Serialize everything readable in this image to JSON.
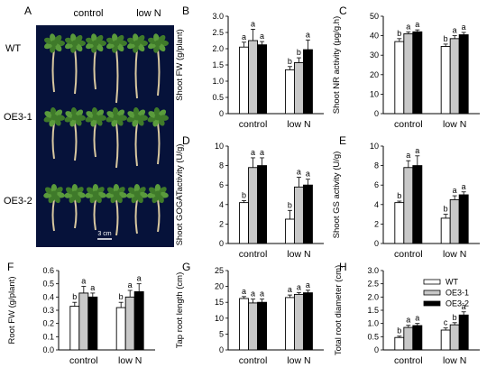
{
  "panel_a": {
    "letter": "A",
    "col_labels": [
      "control",
      "low N"
    ],
    "row_labels": [
      "WT",
      "OE3-1",
      "OE3-2"
    ],
    "scale_label": "3 cm"
  },
  "colors": {
    "WT": "#ffffff",
    "OE3-1": "#c8c8c8",
    "OE3-2": "#000000",
    "photo_bg": "#06123a"
  },
  "chart_data": [
    {
      "id": "B",
      "letter": "B",
      "type": "bar",
      "ylabel": "Shoot FW  (g/plant)",
      "categories": [
        "control",
        "low N"
      ],
      "ylim": [
        0,
        3
      ],
      "yticks": [
        0,
        0.5,
        1.0,
        1.5,
        2.0,
        2.5,
        3.0
      ],
      "tick_decimals": 1,
      "zero_label": "0",
      "series": [
        {
          "name": "WT",
          "values": [
            2.05,
            1.35
          ],
          "errors": [
            0.15,
            0.1
          ],
          "letters": [
            "a",
            "b"
          ]
        },
        {
          "name": "OE3-1",
          "values": [
            2.25,
            1.57
          ],
          "errors": [
            0.35,
            0.15
          ],
          "letters": [
            "a",
            "b"
          ]
        },
        {
          "name": "OE3-2",
          "values": [
            2.12,
            1.97
          ],
          "errors": [
            0.1,
            0.3
          ],
          "letters": [
            "a",
            "a"
          ]
        }
      ]
    },
    {
      "id": "C",
      "letter": "C",
      "type": "bar",
      "ylabel": "Shoot NR activity (μg/g.h)",
      "categories": [
        "control",
        "low N"
      ],
      "ylim": [
        0,
        50
      ],
      "yticks": [
        0,
        10,
        20,
        30,
        40,
        50
      ],
      "tick_decimals": 0,
      "zero_label": "0",
      "series": [
        {
          "name": "WT",
          "values": [
            37,
            34.5
          ],
          "errors": [
            1.5,
            1.2
          ],
          "letters": [
            "b",
            "b"
          ]
        },
        {
          "name": "OE3-1",
          "values": [
            41,
            38.5
          ],
          "errors": [
            1.0,
            1.5
          ],
          "letters": [
            "a",
            "a"
          ]
        },
        {
          "name": "OE3-2",
          "values": [
            42,
            40.5
          ],
          "errors": [
            1.0,
            1.2
          ],
          "letters": [
            "a",
            "a"
          ]
        }
      ]
    },
    {
      "id": "D",
      "letter": "D",
      "type": "bar",
      "ylabel": "Shoot GOGATactivity (U/g)",
      "categories": [
        "control",
        "low N"
      ],
      "ylim": [
        0,
        10
      ],
      "yticks": [
        0,
        2,
        4,
        6,
        8,
        10
      ],
      "tick_decimals": 0,
      "zero_label": "0",
      "series": [
        {
          "name": "WT",
          "values": [
            4.2,
            2.5
          ],
          "errors": [
            0.2,
            0.9
          ],
          "letters": [
            "b",
            "b"
          ]
        },
        {
          "name": "OE3-1",
          "values": [
            7.8,
            5.8
          ],
          "errors": [
            1.0,
            1.0
          ],
          "letters": [
            "a",
            "a"
          ]
        },
        {
          "name": "OE3-2",
          "values": [
            8.0,
            6.0
          ],
          "errors": [
            0.8,
            0.6
          ],
          "letters": [
            "a",
            "a"
          ]
        }
      ]
    },
    {
      "id": "E",
      "letter": "E",
      "type": "bar",
      "ylabel": "Shoot GS activity (U/g)",
      "categories": [
        "control",
        "low N"
      ],
      "ylim": [
        0,
        10
      ],
      "yticks": [
        0,
        2,
        4,
        6,
        8,
        10
      ],
      "tick_decimals": 0,
      "zero_label": "0",
      "series": [
        {
          "name": "WT",
          "values": [
            4.2,
            2.6
          ],
          "errors": [
            0.15,
            0.4
          ],
          "letters": [
            "b",
            "b"
          ]
        },
        {
          "name": "OE3-1",
          "values": [
            7.8,
            4.5
          ],
          "errors": [
            0.7,
            0.4
          ],
          "letters": [
            "a",
            "a"
          ]
        },
        {
          "name": "OE3-2",
          "values": [
            8.0,
            5.0
          ],
          "errors": [
            1.0,
            0.3
          ],
          "letters": [
            "a",
            "a"
          ]
        }
      ]
    },
    {
      "id": "F",
      "letter": "F",
      "type": "bar",
      "ylabel": "Root FW (g/plant)",
      "categories": [
        "control",
        "low N"
      ],
      "ylim": [
        0,
        0.6
      ],
      "yticks": [
        0,
        0.1,
        0.2,
        0.3,
        0.4,
        0.5,
        0.6
      ],
      "tick_decimals": 1,
      "zero_label": "0.0",
      "series": [
        {
          "name": "WT",
          "values": [
            0.33,
            0.32
          ],
          "errors": [
            0.03,
            0.04
          ],
          "letters": [
            "b",
            "b"
          ]
        },
        {
          "name": "OE3-1",
          "values": [
            0.43,
            0.4
          ],
          "errors": [
            0.05,
            0.05
          ],
          "letters": [
            "a",
            "a"
          ]
        },
        {
          "name": "OE3-2",
          "values": [
            0.4,
            0.44
          ],
          "errors": [
            0.03,
            0.06
          ],
          "letters": [
            "a",
            "a"
          ]
        }
      ]
    },
    {
      "id": "G",
      "letter": "G",
      "type": "bar",
      "ylabel": "Tap root length (cm)",
      "categories": [
        "control",
        "low N"
      ],
      "ylim": [
        0,
        25
      ],
      "yticks": [
        0,
        5,
        10,
        15,
        20,
        25
      ],
      "tick_decimals": 0,
      "zero_label": "0",
      "series": [
        {
          "name": "WT",
          "values": [
            16.2,
            16.5
          ],
          "errors": [
            0.6,
            0.8
          ],
          "letters": [
            "a",
            "a"
          ]
        },
        {
          "name": "OE3-1",
          "values": [
            14.8,
            17.5
          ],
          "errors": [
            1.2,
            0.6
          ],
          "letters": [
            "a",
            "a"
          ]
        },
        {
          "name": "OE3-2",
          "values": [
            15.0,
            18.0
          ],
          "errors": [
            1.0,
            0.8
          ],
          "letters": [
            "a",
            "a"
          ]
        }
      ]
    },
    {
      "id": "H",
      "letter": "H",
      "type": "bar",
      "ylabel": "Total root diameter (cm)",
      "categories": [
        "control",
        "low N"
      ],
      "ylim": [
        0,
        3
      ],
      "yticks": [
        0,
        0.5,
        1.0,
        1.5,
        2.0,
        2.5,
        3.0
      ],
      "tick_decimals": 1,
      "zero_label": "0",
      "series": [
        {
          "name": "WT",
          "values": [
            0.47,
            0.75
          ],
          "errors": [
            0.05,
            0.08
          ],
          "letters": [
            "b",
            "c"
          ]
        },
        {
          "name": "OE3-1",
          "values": [
            0.85,
            0.95
          ],
          "errors": [
            0.08,
            0.08
          ],
          "letters": [
            "a",
            "b"
          ]
        },
        {
          "name": "OE3-2",
          "values": [
            0.92,
            1.32
          ],
          "errors": [
            0.08,
            0.12
          ],
          "letters": [
            "a",
            "a"
          ]
        }
      ],
      "legend": [
        "WT",
        "OE3-1",
        "OE3-2"
      ],
      "legend_position": "top-right"
    }
  ]
}
